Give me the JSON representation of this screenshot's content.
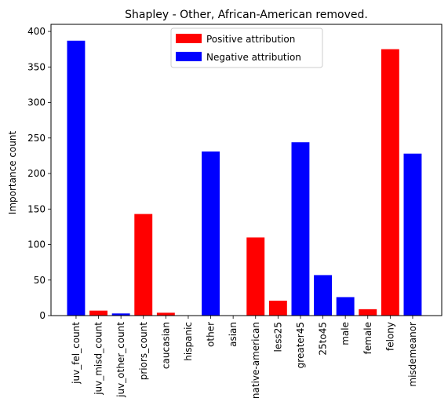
{
  "chart_data": {
    "type": "bar",
    "title": "Shapley - Other, African-American removed.",
    "xlabel": "",
    "ylabel": "Importance count",
    "ylim": [
      0,
      410
    ],
    "yticks": [
      0,
      50,
      100,
      150,
      200,
      250,
      300,
      350,
      400
    ],
    "grid": false,
    "legend_position": "top-center",
    "colors": {
      "positive": "#ff0000",
      "negative": "#0000ff"
    },
    "legend": [
      {
        "label": "Positive attribution",
        "color_key": "positive"
      },
      {
        "label": "Negative attribution",
        "color_key": "negative"
      }
    ],
    "categories": [
      "juv_fel_count",
      "juv_misd_count",
      "juv_other_count",
      "priors_count",
      "caucasian",
      "hispanic",
      "other",
      "asian",
      "native-american",
      "less25",
      "greater45",
      "25to45",
      "male",
      "female",
      "felony",
      "misdemeanor"
    ],
    "values": [
      387,
      7,
      3,
      143,
      4,
      0,
      231,
      0,
      110,
      21,
      244,
      57,
      26,
      9,
      375,
      228
    ],
    "attribution": [
      "negative",
      "positive",
      "negative",
      "positive",
      "positive",
      "negative",
      "negative",
      "negative",
      "positive",
      "positive",
      "negative",
      "negative",
      "negative",
      "positive",
      "positive",
      "negative"
    ]
  }
}
